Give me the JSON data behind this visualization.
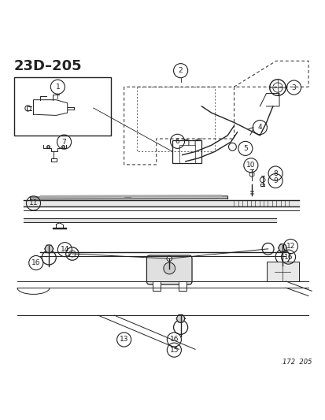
{
  "title": "23D–205",
  "watermark": "172  205",
  "bg_color": "#ffffff",
  "line_color": "#222222",
  "title_fontsize": 13,
  "fig_width": 4.14,
  "fig_height": 5.33,
  "dpi": 100
}
